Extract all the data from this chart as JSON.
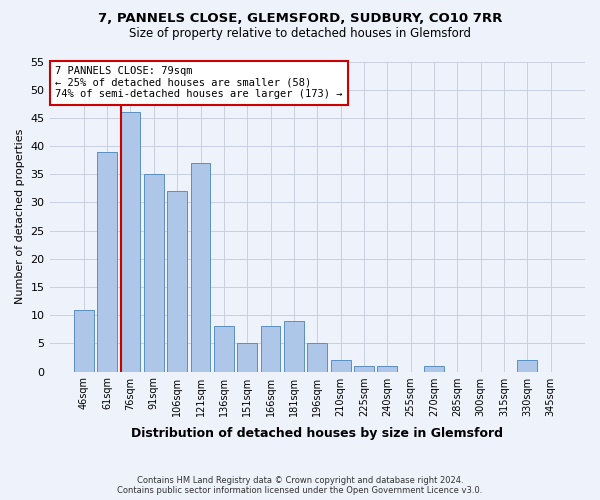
{
  "title1": "7, PANNELS CLOSE, GLEMSFORD, SUDBURY, CO10 7RR",
  "title2": "Size of property relative to detached houses in Glemsford",
  "xlabel": "Distribution of detached houses by size in Glemsford",
  "ylabel": "Number of detached properties",
  "categories": [
    "46sqm",
    "61sqm",
    "76sqm",
    "91sqm",
    "106sqm",
    "121sqm",
    "136sqm",
    "151sqm",
    "166sqm",
    "181sqm",
    "196sqm",
    "210sqm",
    "225sqm",
    "240sqm",
    "255sqm",
    "270sqm",
    "285sqm",
    "300sqm",
    "315sqm",
    "330sqm",
    "345sqm"
  ],
  "values": [
    11,
    39,
    46,
    35,
    32,
    37,
    8,
    5,
    8,
    9,
    5,
    2,
    1,
    1,
    0,
    1,
    0,
    0,
    0,
    2,
    0
  ],
  "bar_color": "#aec6e8",
  "bar_edge_color": "#5a8fc0",
  "vline_index": 2,
  "annotation_line1": "7 PANNELS CLOSE: 79sqm",
  "annotation_line2": "← 25% of detached houses are smaller (58)",
  "annotation_line3": "74% of semi-detached houses are larger (173) →",
  "annotation_box_color": "#ffffff",
  "annotation_box_edge": "#cc0000",
  "vline_color": "#cc0000",
  "ylim": [
    0,
    55
  ],
  "yticks": [
    0,
    5,
    10,
    15,
    20,
    25,
    30,
    35,
    40,
    45,
    50,
    55
  ],
  "grid_color": "#c8d0e0",
  "bg_color": "#eef2fa",
  "footer1": "Contains HM Land Registry data © Crown copyright and database right 2024.",
  "footer2": "Contains public sector information licensed under the Open Government Licence v3.0."
}
